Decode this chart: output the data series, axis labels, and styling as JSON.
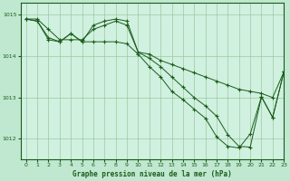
{
  "title": "Graphe pression niveau de la mer (hPa)",
  "background_color": "#c0e8d0",
  "plot_bg_color": "#d0f0e0",
  "line_color": "#1a5c1a",
  "xlim": [
    -0.5,
    23
  ],
  "ylim": [
    1011.5,
    1015.3
  ],
  "yticks": [
    1012,
    1013,
    1014,
    1015
  ],
  "xticks": [
    0,
    1,
    2,
    3,
    4,
    5,
    6,
    7,
    8,
    9,
    10,
    11,
    12,
    13,
    14,
    15,
    16,
    17,
    18,
    19,
    20,
    21,
    22,
    23
  ],
  "series1": [
    1014.9,
    1014.9,
    1014.65,
    1014.4,
    1014.4,
    1014.4,
    1014.65,
    1014.75,
    1014.85,
    1014.75,
    1014.1,
    1014.05,
    1013.9,
    1013.8,
    1013.7,
    1013.6,
    1013.5,
    1013.4,
    1013.3,
    1013.2,
    1013.15,
    1013.1,
    1013.0,
    1013.62
  ],
  "series2": [
    1014.9,
    1014.85,
    1014.4,
    1014.35,
    1014.55,
    1014.35,
    1014.35,
    1014.35,
    1014.35,
    1014.3,
    1014.05,
    1013.75,
    1013.5,
    1013.15,
    1012.95,
    1012.72,
    1012.5,
    1012.05,
    1011.82,
    1011.78,
    1012.12,
    1013.02,
    1012.52,
    1013.62
  ],
  "series3": [
    1014.9,
    1014.85,
    1014.45,
    1014.35,
    1014.55,
    1014.35,
    1014.75,
    1014.85,
    1014.9,
    1014.85,
    1014.1,
    1013.95,
    1013.75,
    1013.5,
    1013.25,
    1013.0,
    1012.8,
    1012.55,
    1012.1,
    1011.82,
    1011.8,
    1013.02,
    1012.52,
    1013.62
  ]
}
